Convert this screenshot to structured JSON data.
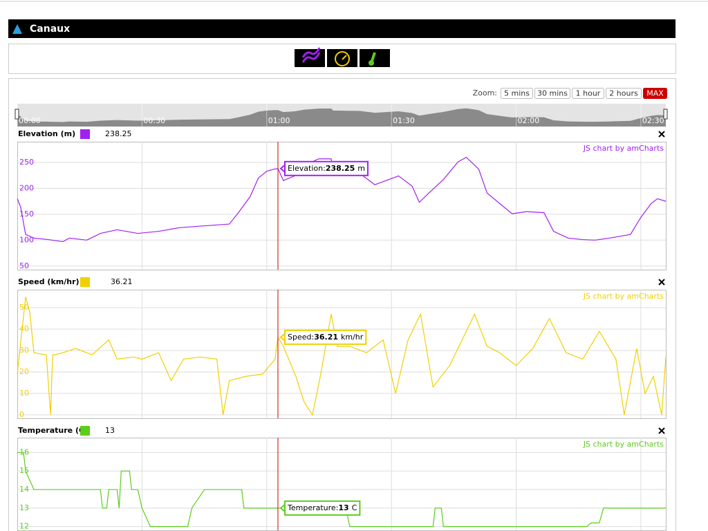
{
  "header": {
    "title": "Canaux"
  },
  "zoom": {
    "label": "Zoom:",
    "buttons": [
      "5 mins",
      "30 mins",
      "1 hour",
      "2 hours",
      "MAX"
    ],
    "active": 4
  },
  "navigator": {
    "xlim": [
      0,
      156
    ],
    "xticks": [
      {
        "value": 0,
        "label": "00:00"
      },
      {
        "value": 30,
        "label": "00:30"
      },
      {
        "value": 60,
        "label": "01:00"
      },
      {
        "value": 90,
        "label": "01:30"
      },
      {
        "value": 120,
        "label": "02:00"
      },
      {
        "value": 150,
        "label": "02:30"
      }
    ]
  },
  "chart_data": [
    {
      "type": "line",
      "title": "Elevation (m)",
      "readout": 238.25,
      "color": "#a020f0",
      "credit": "JS chart by amCharts",
      "tooltip_label": "Elevation:",
      "unit": "m",
      "cursor_x": 62.7,
      "xlim": [
        0,
        156
      ],
      "ylim": [
        43,
        290
      ],
      "yticks": [
        50,
        100,
        150,
        200,
        250
      ],
      "x": [
        0,
        0.8,
        2,
        4,
        7.5,
        11,
        12.5,
        16.7,
        20,
        24,
        29,
        34,
        39,
        44,
        51,
        53,
        56,
        58,
        60,
        61.7,
        62.7,
        64,
        66.7,
        69,
        72.5,
        75.5,
        76,
        79,
        82.5,
        86,
        88,
        91.7,
        95,
        96.7,
        99,
        102.5,
        106,
        108,
        111,
        113,
        116,
        119,
        122.5,
        126.7,
        129,
        132.5,
        136,
        139,
        142.5,
        147.5,
        150,
        152.5,
        154,
        156
      ],
      "values": [
        180,
        164,
        111,
        104,
        101,
        97,
        104,
        100,
        113,
        120,
        113,
        117,
        124,
        127,
        131,
        151,
        184,
        220,
        233,
        237,
        238.25,
        215,
        224,
        244,
        257,
        257,
        233,
        231,
        228,
        207,
        213,
        224,
        204,
        173,
        191,
        217,
        251,
        260,
        237,
        191,
        171,
        151,
        155,
        153,
        117,
        104,
        101,
        100,
        104,
        111,
        144,
        171,
        180,
        175
      ]
    },
    {
      "type": "line",
      "title": "Speed (km/hr)",
      "readout": 36.21,
      "color": "#f0d000",
      "credit": "JS chart by amCharts",
      "tooltip_label": "Speed:",
      "unit": "km/hr",
      "cursor_x": 62.7,
      "xlim": [
        0,
        156
      ],
      "ylim": [
        -1.6,
        58.4
      ],
      "yticks": [
        0,
        10,
        20,
        30,
        40,
        50
      ],
      "x": [
        0,
        2,
        3,
        4,
        7,
        8,
        8.5,
        9,
        11,
        14,
        18,
        22,
        24,
        28,
        30,
        34,
        37,
        40,
        44,
        48,
        49.5,
        51,
        55,
        59,
        62,
        62.7,
        64,
        67,
        69,
        71,
        73,
        75.5,
        77,
        80,
        84,
        88,
        91,
        94,
        97,
        100,
        104,
        110,
        113,
        116,
        120,
        124,
        128,
        132,
        136,
        140,
        144,
        146,
        149,
        151,
        153,
        155,
        156
      ],
      "values": [
        19,
        55,
        48,
        29,
        28,
        0,
        28,
        28,
        29,
        31,
        28,
        35,
        26,
        27,
        26,
        29,
        16,
        26,
        27,
        26,
        0,
        16,
        18,
        19,
        26,
        36.21,
        32,
        18,
        6,
        0,
        19,
        47,
        32,
        32,
        29,
        35,
        10,
        35,
        47,
        13,
        23,
        47,
        32,
        29,
        23,
        31,
        45,
        29,
        26,
        39,
        26,
        0,
        31,
        10,
        18,
        0,
        27
      ]
    },
    {
      "type": "line",
      "title": "Temperature (C)",
      "readout": 13,
      "color": "#5ccc1c",
      "credit": "JS chart by amCharts",
      "tooltip_label": "Temperature:",
      "unit": "C",
      "cursor_x": 62.7,
      "xlim": [
        0,
        156
      ],
      "ylim": [
        11.8,
        16.8
      ],
      "yticks": [
        12,
        13,
        14,
        15,
        16
      ],
      "x": [
        0,
        1.5,
        2,
        4,
        20,
        20.5,
        21.5,
        22,
        24,
        24.5,
        25,
        27,
        27.5,
        29,
        30,
        32,
        41,
        42,
        45,
        54,
        54.5,
        62.7,
        79,
        80,
        100,
        100.5,
        102,
        102.5,
        104,
        137,
        138,
        140,
        141,
        156
      ],
      "values": [
        16,
        16,
        15,
        14,
        14,
        13,
        13,
        14,
        14,
        13,
        15,
        15,
        14,
        14,
        13,
        12,
        12,
        13,
        14,
        14,
        13,
        13,
        13,
        12,
        12,
        13,
        13,
        12,
        12,
        12,
        12.2,
        12.2,
        13,
        13
      ]
    }
  ]
}
